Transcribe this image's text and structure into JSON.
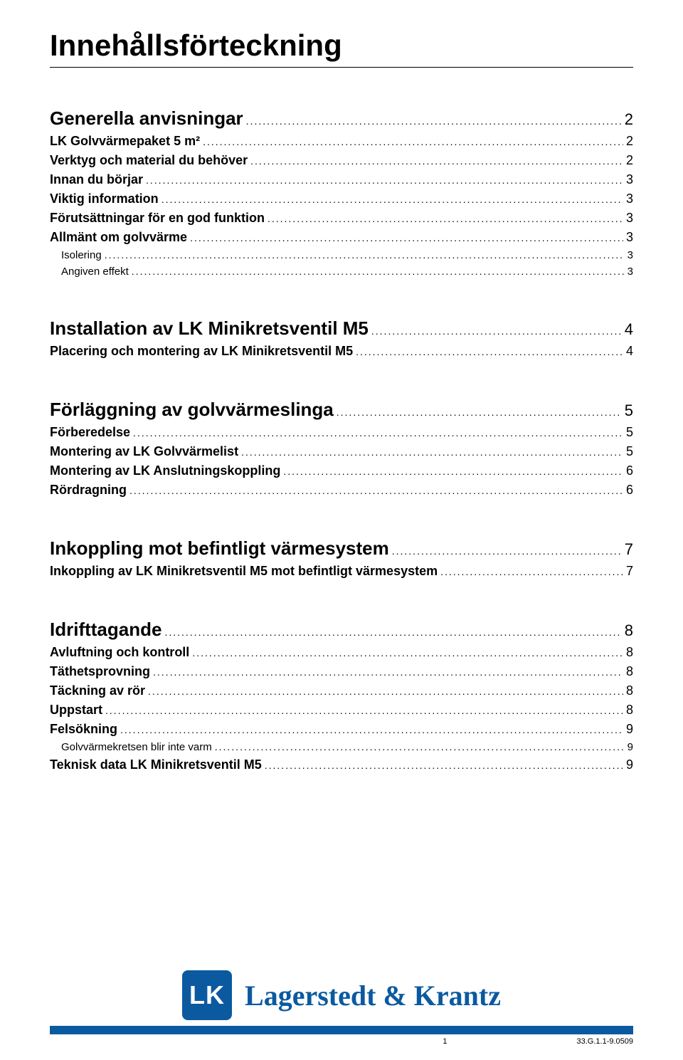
{
  "colors": {
    "brand_blue": "#0b5aa0",
    "text": "#000000",
    "background": "#ffffff"
  },
  "title": "Innehållsförteckning",
  "sections": [
    {
      "entries": [
        {
          "level": 0,
          "label": "Generella anvisningar",
          "page": "2"
        },
        {
          "level": 1,
          "label": "LK Golvvärmepaket 5 m²",
          "page": "2"
        },
        {
          "level": 1,
          "label": "Verktyg och material du behöver",
          "page": "2"
        },
        {
          "level": 1,
          "label": "Innan du börjar",
          "page": "3"
        },
        {
          "level": 1,
          "label": "Viktig information",
          "page": "3"
        },
        {
          "level": 1,
          "label": "Förutsättningar för en god funktion",
          "page": "3"
        },
        {
          "level": 1,
          "label": "Allmänt om golvvärme",
          "page": "3"
        },
        {
          "level": 2,
          "label": "Isolering",
          "page": "3"
        },
        {
          "level": 2,
          "label": "Angiven effekt",
          "page": "3"
        }
      ]
    },
    {
      "entries": [
        {
          "level": 0,
          "label": "Installation av LK Minikretsventil M5",
          "page": "4"
        },
        {
          "level": 1,
          "label": "Placering och montering av LK Minikretsventil M5",
          "page": "4"
        }
      ]
    },
    {
      "entries": [
        {
          "level": 0,
          "label": "Förläggning av golvvärmeslinga",
          "page": "5"
        },
        {
          "level": 1,
          "label": "Förberedelse",
          "page": "5"
        },
        {
          "level": 1,
          "label": "Montering av LK Golvvärmelist",
          "page": "5"
        },
        {
          "level": 1,
          "label": "Montering av LK Anslutningskoppling",
          "page": "6"
        },
        {
          "level": 1,
          "label": "Rördragning",
          "page": "6"
        }
      ]
    },
    {
      "entries": [
        {
          "level": 0,
          "label": "Inkoppling mot befintligt värmesystem",
          "page": "7"
        },
        {
          "level": 1,
          "label": "Inkoppling av LK Minikretsventil M5 mot befintligt värmesystem",
          "page": "7"
        }
      ]
    },
    {
      "entries": [
        {
          "level": 0,
          "label": "Idrifttagande",
          "page": "8"
        },
        {
          "level": 1,
          "label": "Avluftning och kontroll",
          "page": "8"
        },
        {
          "level": 1,
          "label": "Täthetsprovning",
          "page": "8"
        },
        {
          "level": 1,
          "label": "Täckning av rör",
          "page": "8"
        },
        {
          "level": 1,
          "label": "Uppstart",
          "page": "8"
        },
        {
          "level": 1,
          "label": "Felsökning",
          "page": "9"
        },
        {
          "level": 2,
          "label": "Golvvärmekretsen blir inte varm",
          "page": "9"
        },
        {
          "level": 1,
          "label": "Teknisk data LK Minikretsventil M5",
          "page": "9"
        }
      ]
    }
  ],
  "footer": {
    "logo_text": "LK",
    "brand_name": "Lagerstedt & Krantz",
    "page_number": "1",
    "doc_id": "33.G.1.1-9.0509"
  }
}
